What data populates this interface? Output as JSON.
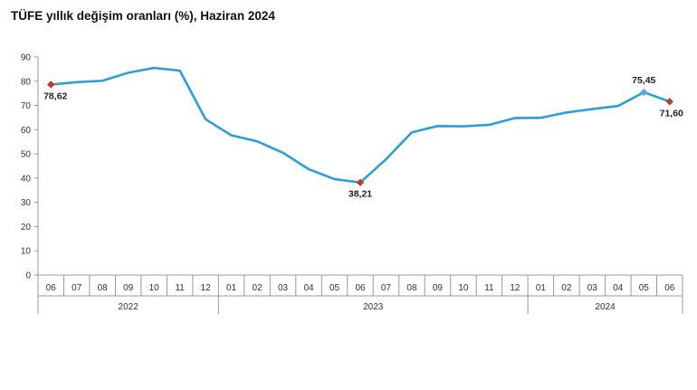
{
  "header": {
    "title_bold": "TÜFE",
    "title_rest": " yıllık değişim oranları (%), Haziran 2024"
  },
  "colors": {
    "line": "#2e9fd6",
    "marker_red": "#c0392b",
    "marker_blue": "#5aa9e6",
    "axis": "#999999",
    "grid": "#e3e3e3"
  },
  "chart_data": {
    "type": "line",
    "title": "TÜFE yıllık değişim oranları (%), Haziran 2024",
    "xlabel": "",
    "ylabel": "",
    "ylim": [
      0,
      90
    ],
    "yticks": [
      0,
      10,
      20,
      30,
      40,
      50,
      60,
      70,
      80,
      90
    ],
    "grid": false,
    "categories": [
      "06",
      "07",
      "08",
      "09",
      "10",
      "11",
      "12",
      "01",
      "02",
      "03",
      "04",
      "05",
      "06",
      "07",
      "08",
      "09",
      "10",
      "11",
      "12",
      "01",
      "02",
      "03",
      "04",
      "05",
      "06"
    ],
    "years": [
      {
        "label": "2022",
        "from": 0,
        "to": 6
      },
      {
        "label": "2023",
        "from": 7,
        "to": 18
      },
      {
        "label": "2024",
        "from": 19,
        "to": 24
      }
    ],
    "series": [
      {
        "values": [
          78.62,
          79.6,
          80.2,
          83.5,
          85.5,
          84.4,
          64.3,
          57.7,
          55.2,
          50.5,
          43.7,
          39.6,
          38.21,
          47.8,
          58.9,
          61.5,
          61.4,
          62.0,
          64.8,
          64.9,
          67.1,
          68.5,
          69.8,
          75.45,
          71.6
        ]
      }
    ],
    "annotations": [
      {
        "index": 0,
        "text": "78,62",
        "marker": "red",
        "pos": "below"
      },
      {
        "index": 12,
        "text": "38,21",
        "marker": "red",
        "pos": "below"
      },
      {
        "index": 23,
        "text": "75,45",
        "marker": "blue",
        "pos": "above"
      },
      {
        "index": 24,
        "text": "71,60",
        "marker": "red",
        "pos": "below"
      }
    ]
  }
}
